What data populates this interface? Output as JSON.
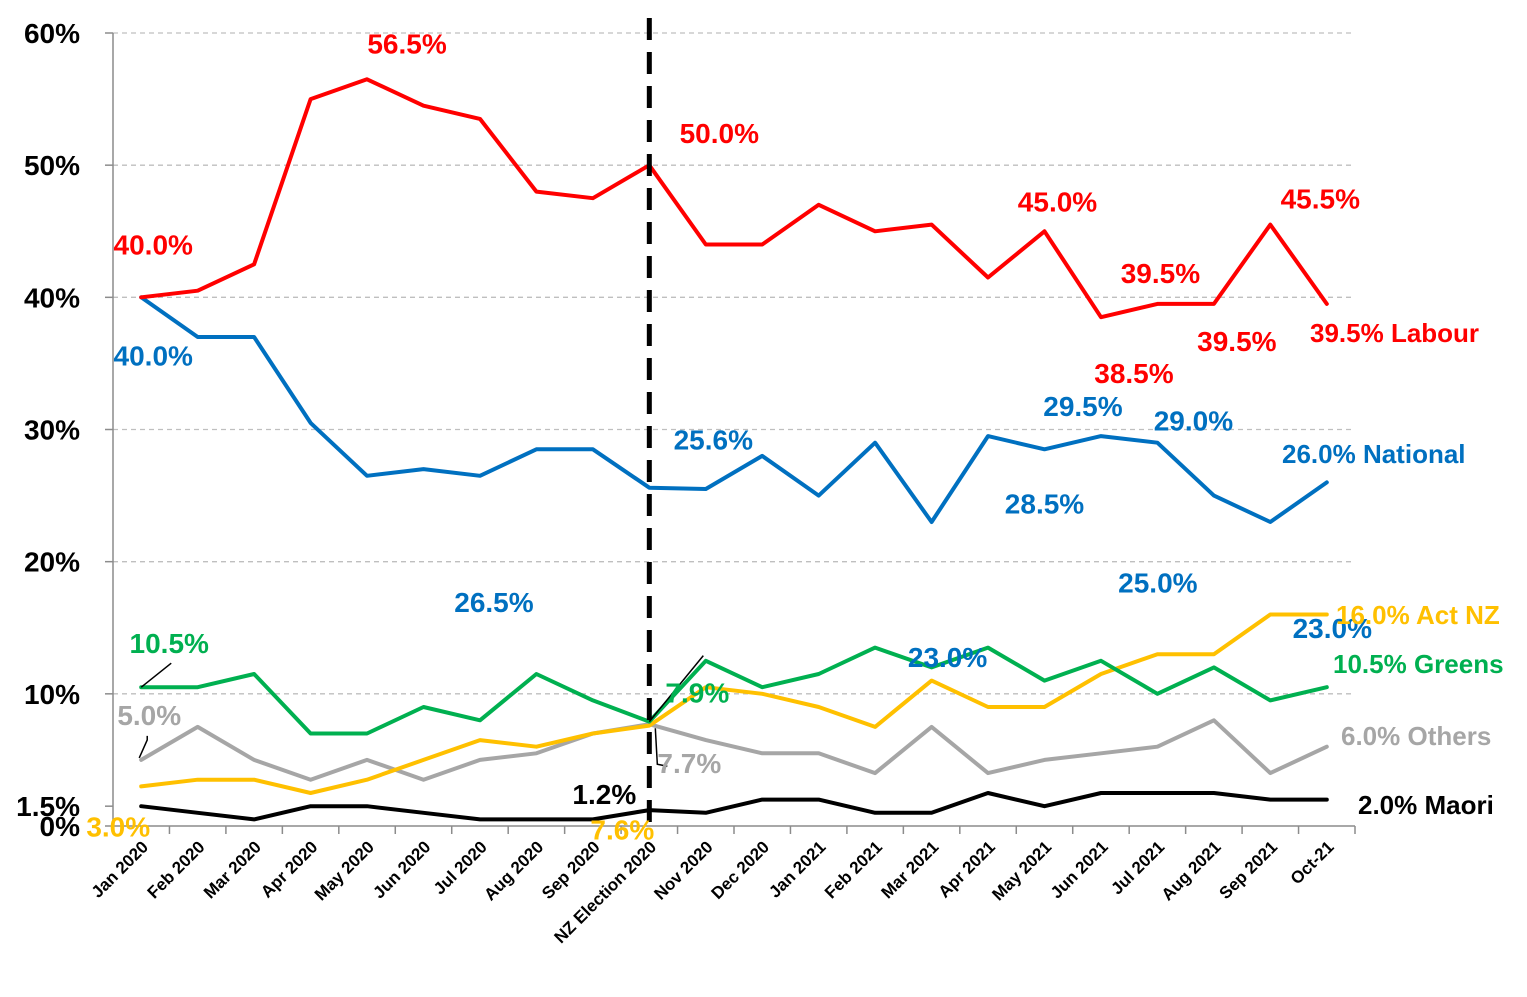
{
  "chart_data": {
    "type": "line",
    "title": "",
    "xlabel": "",
    "ylabel": "",
    "ylim": [
      0,
      60
    ],
    "y_ticks": [
      {
        "value": 0,
        "label": "0%"
      },
      {
        "value": 1.5,
        "label": "1.5%"
      },
      {
        "value": 10,
        "label": "10%"
      },
      {
        "value": 20,
        "label": "20%"
      },
      {
        "value": 30,
        "label": "30%"
      },
      {
        "value": 40,
        "label": "40%"
      },
      {
        "value": 50,
        "label": "50%"
      },
      {
        "value": 60,
        "label": "60%"
      }
    ],
    "grid": true,
    "categories": [
      "Jan 2020",
      "Feb 2020",
      "Mar 2020",
      "Apr 2020",
      "May 2020",
      "Jun 2020",
      "Jul 2020",
      "Aug 2020",
      "Sep 2020",
      "NZ Election 2020",
      "Nov 2020",
      "Dec 2020",
      "Jan 2021",
      "Feb 2021",
      "Mar 2021",
      "Apr 2021",
      "May 2021",
      "Jun 2021",
      "Jul 2021",
      "Aug 2021",
      "Sep 2021",
      "Oct-21"
    ],
    "election_marker_index": 9,
    "series": [
      {
        "name": "Labour",
        "color": "#ff0000",
        "values": [
          40.0,
          40.5,
          42.5,
          55.0,
          56.5,
          54.5,
          53.5,
          48.0,
          47.5,
          50.0,
          44.0,
          44.0,
          47.0,
          45.0,
          45.5,
          41.5,
          45.0,
          38.5,
          39.5,
          39.5,
          45.5,
          39.5
        ],
        "end_label": "39.5% Labour"
      },
      {
        "name": "National",
        "color": "#0070c0",
        "values": [
          40.0,
          37.0,
          37.0,
          30.5,
          26.5,
          27.0,
          26.5,
          28.5,
          28.5,
          25.6,
          25.5,
          28.0,
          25.0,
          29.0,
          23.0,
          29.5,
          28.5,
          29.5,
          29.0,
          25.0,
          23.0,
          26.0
        ],
        "end_label": "26.0% National"
      },
      {
        "name": "Act NZ",
        "color": "#ffc000",
        "values": [
          3.0,
          3.5,
          3.5,
          2.5,
          3.5,
          5.0,
          6.5,
          6.0,
          7.0,
          7.6,
          10.5,
          10.0,
          9.0,
          7.5,
          11.0,
          9.0,
          9.0,
          11.5,
          13.0,
          13.0,
          16.0,
          16.0
        ],
        "end_label": "16.0% Act NZ"
      },
      {
        "name": "Greens",
        "color": "#00b050",
        "values": [
          10.5,
          10.5,
          11.5,
          7.0,
          7.0,
          9.0,
          8.0,
          11.5,
          9.5,
          7.9,
          12.5,
          10.5,
          11.5,
          13.5,
          12.0,
          13.5,
          11.0,
          12.5,
          10.0,
          12.0,
          9.5,
          10.5
        ],
        "end_label": "10.5% Greens"
      },
      {
        "name": "Others",
        "color": "#a6a6a6",
        "values": [
          5.0,
          7.5,
          5.0,
          3.5,
          5.0,
          3.5,
          5.0,
          5.5,
          7.0,
          7.7,
          6.5,
          5.5,
          5.5,
          4.0,
          7.5,
          4.0,
          5.0,
          5.5,
          6.0,
          8.0,
          4.0,
          6.0
        ],
        "end_label": "6.0% Others"
      },
      {
        "name": "Maori",
        "color": "#000000",
        "values": [
          1.5,
          1.0,
          0.5,
          1.5,
          1.5,
          1.0,
          0.5,
          0.5,
          0.5,
          1.2,
          1.0,
          2.0,
          2.0,
          1.0,
          1.0,
          2.5,
          1.5,
          2.5,
          2.5,
          2.5,
          2.0,
          2.0
        ],
        "end_label": "2.0% Maori"
      }
    ],
    "annotations": [
      {
        "series": "Labour",
        "index": 0,
        "text": "40.0%"
      },
      {
        "series": "Labour",
        "index": 4,
        "text": "56.5%"
      },
      {
        "series": "Labour",
        "index": 9,
        "text": "50.0%"
      },
      {
        "series": "Labour",
        "index": 16,
        "text": "45.0%"
      },
      {
        "series": "Labour",
        "index": 17,
        "text": "38.5%"
      },
      {
        "series": "Labour",
        "index": 18,
        "text": "39.5%"
      },
      {
        "series": "Labour",
        "index": 19,
        "text": "39.5%"
      },
      {
        "series": "Labour",
        "index": 20,
        "text": "45.5%"
      },
      {
        "series": "National",
        "index": 0,
        "text": "40.0%"
      },
      {
        "series": "National",
        "index": 6,
        "text": "26.5%"
      },
      {
        "series": "National",
        "index": 9,
        "text": "25.6%"
      },
      {
        "series": "National",
        "index": 14,
        "text": "23.0%"
      },
      {
        "series": "National",
        "index": 16,
        "text": "28.5%"
      },
      {
        "series": "National",
        "index": 17,
        "text": "29.5%"
      },
      {
        "series": "National",
        "index": 18,
        "text": "29.0%"
      },
      {
        "series": "National",
        "index": 19,
        "text": "25.0%"
      },
      {
        "series": "National",
        "index": 20,
        "text": "23.0%"
      },
      {
        "series": "Greens",
        "index": 0,
        "text": "10.5%"
      },
      {
        "series": "Greens",
        "index": 9,
        "text": "7.9%"
      },
      {
        "series": "Others",
        "index": 0,
        "text": "5.0%"
      },
      {
        "series": "Others",
        "index": 9,
        "text": "7.7%"
      },
      {
        "series": "Act NZ",
        "index": 0,
        "text": "3.0%"
      },
      {
        "series": "Act NZ",
        "index": 9,
        "text": "7.6%"
      },
      {
        "series": "Maori",
        "index": 9,
        "text": "1.2%"
      }
    ]
  }
}
